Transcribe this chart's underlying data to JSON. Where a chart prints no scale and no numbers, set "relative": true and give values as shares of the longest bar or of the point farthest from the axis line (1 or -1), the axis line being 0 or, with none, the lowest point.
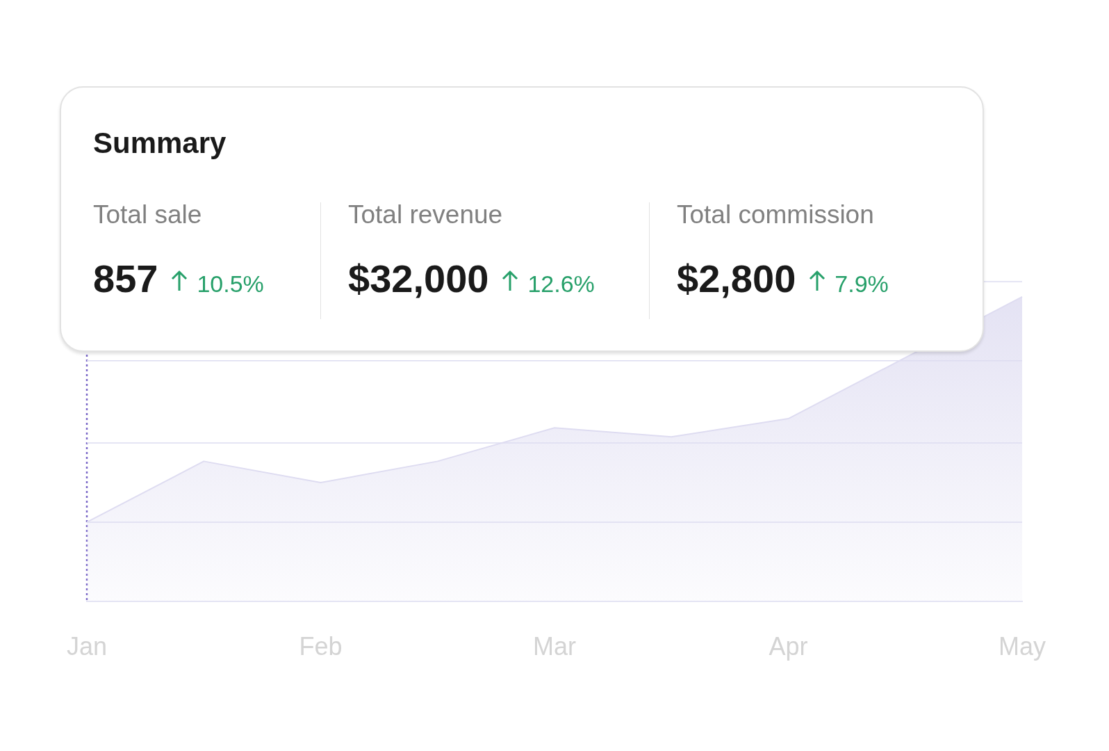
{
  "chart_data": [
    {
      "type": "area",
      "relative": true,
      "categories": [
        "Jan",
        null,
        "Feb",
        null,
        "Mar",
        null,
        "Apr",
        null,
        "May"
      ],
      "series": [
        {
          "color": "#dedcf1",
          "values": [
            0.26,
            0.46,
            0.39,
            0.46,
            0.57,
            0.54,
            0.6,
            0.8,
            1
          ]
        }
      ],
      "marker": "none",
      "legend": false,
      "ref_lines": [
        {
          "axis": "x",
          "value": "Jan",
          "color": "#7b68c8",
          "line_style": "dotted"
        },
        {
          "axis": "y",
          "value": 0.26,
          "color": "#dcdcf0",
          "line_style": "solid"
        },
        {
          "axis": "y",
          "value": 0.52,
          "color": "#dcdcf0",
          "line_style": "solid"
        },
        {
          "axis": "y",
          "value": 0.79,
          "color": "#dcdcf0",
          "line_style": "solid"
        },
        {
          "axis": "y",
          "value": 1.05,
          "color": "#dcdcf0",
          "line_style": "solid"
        }
      ]
    },
    {
      "type": "other",
      "title": "Summary",
      "annotations": [
        "Total sale",
        "857",
        "10.5%",
        "Total revenue",
        "$32,000",
        "12.6%",
        "Total commission",
        "$2,800",
        "7.9%"
      ]
    }
  ]
}
